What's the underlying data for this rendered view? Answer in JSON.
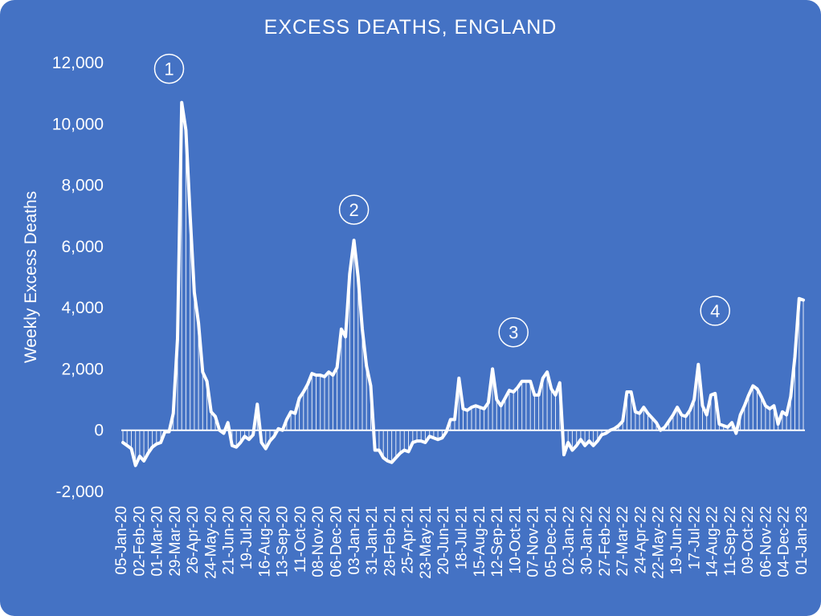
{
  "chart_data": {
    "type": "area",
    "title": "EXCESS DEATHS, ENGLAND",
    "xlabel": "",
    "ylabel": "Weekly Excess Deaths",
    "ylim": [
      -2000,
      12000
    ],
    "yticks": [
      -2000,
      0,
      2000,
      4000,
      6000,
      8000,
      10000,
      12000
    ],
    "ytick_labels": [
      "-2,000",
      "0",
      "2,000",
      "4,000",
      "6,000",
      "8,000",
      "10,000",
      "12,000"
    ],
    "x_tick_labels": [
      "05-Jan-20",
      "02-Feb-20",
      "01-Mar-20",
      "29-Mar-20",
      "26-Apr-20",
      "24-May-20",
      "21-Jun-20",
      "19-Jul-20",
      "16-Aug-20",
      "13-Sep-20",
      "11-Oct-20",
      "08-Nov-20",
      "06-Dec-20",
      "03-Jan-21",
      "31-Jan-21",
      "28-Feb-21",
      "25-Apr-21",
      "23-May-21",
      "20-Jun-21",
      "18-Jul-21",
      "15-Aug-21",
      "12-Sep-21",
      "10-Oct-21",
      "07-Nov-21",
      "05-Dec-21",
      "02-Jan-22",
      "30-Jan-22",
      "27-Feb-22",
      "27-Mar-22",
      "24-Apr-22",
      "22-May-22",
      "19-Jun-22",
      "17-Jul-22",
      "14-Aug-22",
      "11-Sep-22",
      "09-Oct-22",
      "06-Nov-22",
      "04-Dec-22",
      "01-Jan-23"
    ],
    "grid": false,
    "legend": "none",
    "annotations": [
      {
        "label": "1",
        "x": 11,
        "y": 11800
      },
      {
        "label": "2",
        "x": 55,
        "y": 7200
      },
      {
        "label": "3",
        "x": 93,
        "y": 3200
      },
      {
        "label": "4",
        "x": 141,
        "y": 3900
      }
    ],
    "series": [
      {
        "values": [
          -400,
          -500,
          -600,
          -1150,
          -850,
          -1000,
          -750,
          -550,
          -450,
          -400,
          -50,
          -50,
          550,
          3000,
          10700,
          9800,
          7000,
          4500,
          3500,
          1900,
          1600,
          600,
          450,
          0,
          -100,
          250,
          -500,
          -550,
          -400,
          -200,
          -300,
          -150,
          850,
          -400,
          -600,
          -350,
          -200,
          50,
          0,
          350,
          600,
          550,
          1050,
          1250,
          1500,
          1850,
          1800,
          1800,
          1750,
          1900,
          1800,
          2050,
          3300,
          3050,
          5100,
          6200,
          5000,
          3300,
          2100,
          1450,
          -650,
          -650,
          -900,
          -1000,
          -1050,
          -900,
          -750,
          -650,
          -700,
          -400,
          -350,
          -350,
          -400,
          -200,
          -250,
          -300,
          -250,
          -50,
          350,
          350,
          1700,
          700,
          650,
          750,
          800,
          750,
          700,
          900,
          2000,
          1000,
          800,
          1050,
          1300,
          1250,
          1400,
          1600,
          1600,
          1600,
          1150,
          1150,
          1700,
          1900,
          1350,
          1150,
          1550,
          -800,
          -400,
          -650,
          -500,
          -300,
          -500,
          -350,
          -500,
          -350,
          -150,
          -100,
          0,
          50,
          150,
          300,
          1250,
          1250,
          600,
          550,
          750,
          550,
          400,
          250,
          0,
          100,
          300,
          500,
          750,
          500,
          450,
          650,
          1000,
          2150,
          800,
          500,
          1150,
          1200,
          200,
          150,
          100,
          250,
          -100,
          500,
          800,
          1150,
          1450,
          1350,
          1100,
          800,
          700,
          800,
          200,
          600,
          500,
          1100,
          2400,
          4300,
          4250
        ]
      }
    ]
  }
}
